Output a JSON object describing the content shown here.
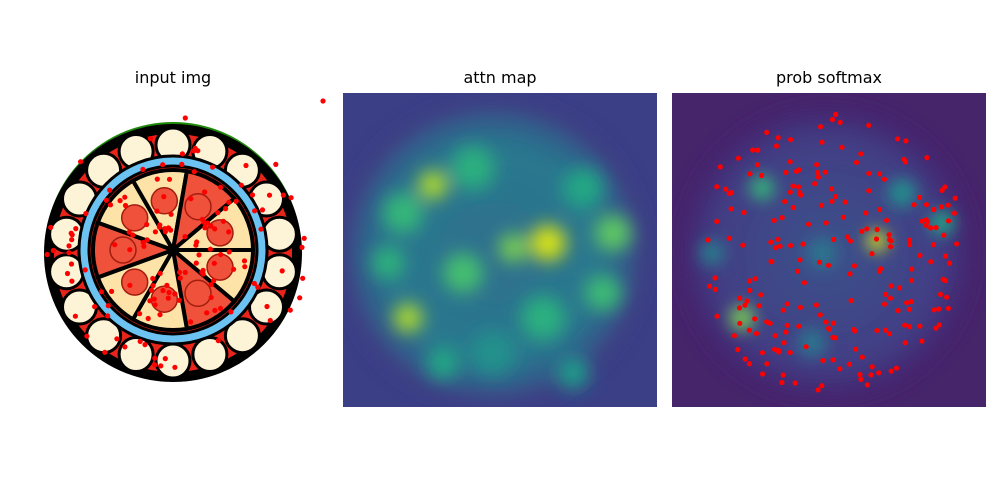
{
  "panels": [
    {
      "id": "input",
      "title": "input img"
    },
    {
      "id": "attn",
      "title": "attn map"
    },
    {
      "id": "prob",
      "title": "prob softmax"
    }
  ],
  "colors": {
    "crust_black": "#000000",
    "sauce_red": "#e8241b",
    "cheese": "#fde3a7",
    "pepperoni": "#f0513a",
    "ring_blue": "#6cc3f2",
    "leaf_green": "#1f8a0a",
    "point_red": "#ff0000",
    "viridis_dark": "#440154",
    "viridis_mid": "#21918c",
    "viridis_yellow": "#fde725"
  }
}
